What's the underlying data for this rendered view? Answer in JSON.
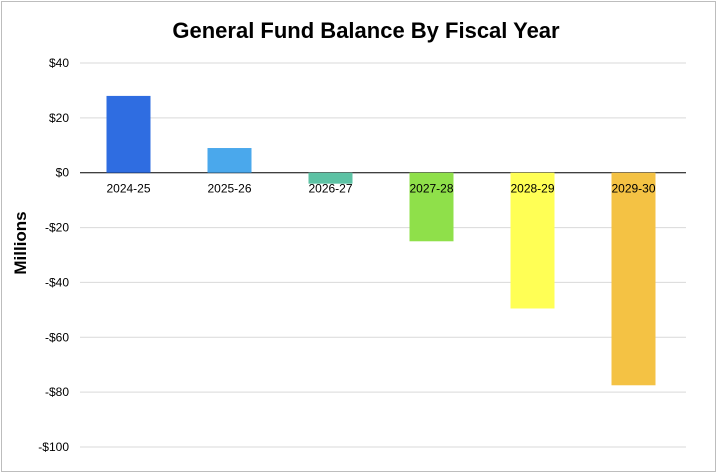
{
  "chart_data": {
    "type": "bar",
    "title": "General Fund Balance By Fiscal Year",
    "ylabel": "Millions",
    "xlabel": "",
    "categories": [
      "2024-25",
      "2025-26",
      "2026-27",
      "2027-28",
      "2028-29",
      "2029-30"
    ],
    "values": [
      28,
      9,
      -4,
      -25,
      -49.5,
      -77.5
    ],
    "colors": [
      "#2f6de1",
      "#4aa8ec",
      "#5dc2a4",
      "#8fe04a",
      "#ffff55",
      "#f4c244"
    ],
    "ylim": [
      -100,
      40
    ],
    "yticks": [
      40,
      20,
      0,
      -20,
      -40,
      -60,
      -80,
      -100
    ],
    "ytick_labels": [
      "$40",
      "$20",
      "$0",
      "-$20",
      "-$40",
      "-$60",
      "-$80",
      "-$100"
    ],
    "grid": true,
    "legend": "none"
  }
}
